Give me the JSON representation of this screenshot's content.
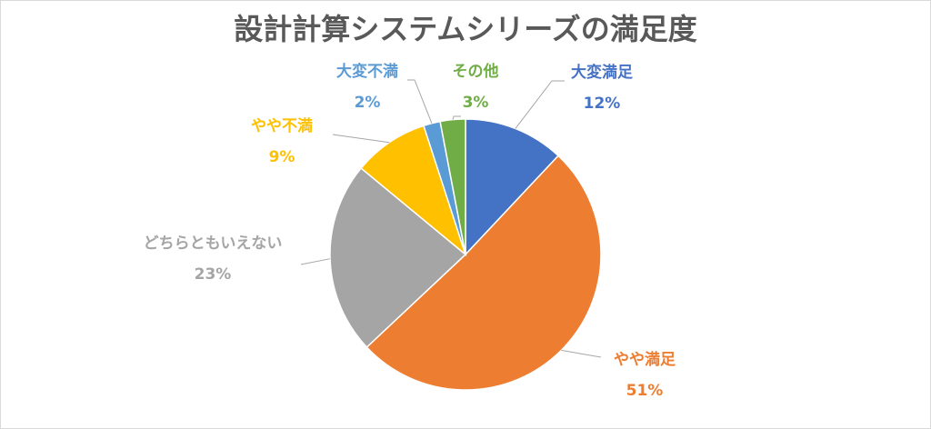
{
  "chart_data": {
    "type": "pie",
    "title": "設計計算システムシリーズの満足度",
    "start_angle_deg": 0,
    "direction": "clockwise",
    "slices": [
      {
        "label": "大変満足",
        "value": 12,
        "value_label": "12%",
        "color": "#4472C4",
        "label_color": "#4472C4"
      },
      {
        "label": "やや満足",
        "value": 51,
        "value_label": "51%",
        "color": "#ED7D31",
        "label_color": "#ED7D31"
      },
      {
        "label": "どちらともいえない",
        "value": 23,
        "value_label": "23%",
        "color": "#A5A5A5",
        "label_color": "#A5A5A5"
      },
      {
        "label": "やや不満",
        "value": 9,
        "value_label": "9%",
        "color": "#FFC000",
        "label_color": "#FFC000"
      },
      {
        "label": "大変不満",
        "value": 2,
        "value_label": "2%",
        "color": "#5B9BD5",
        "label_color": "#5B9BD5"
      },
      {
        "label": "その他",
        "value": 3,
        "value_label": "3%",
        "color": "#70AD47",
        "label_color": "#70AD47"
      }
    ],
    "leader_line_color": "#A6A6A6"
  }
}
